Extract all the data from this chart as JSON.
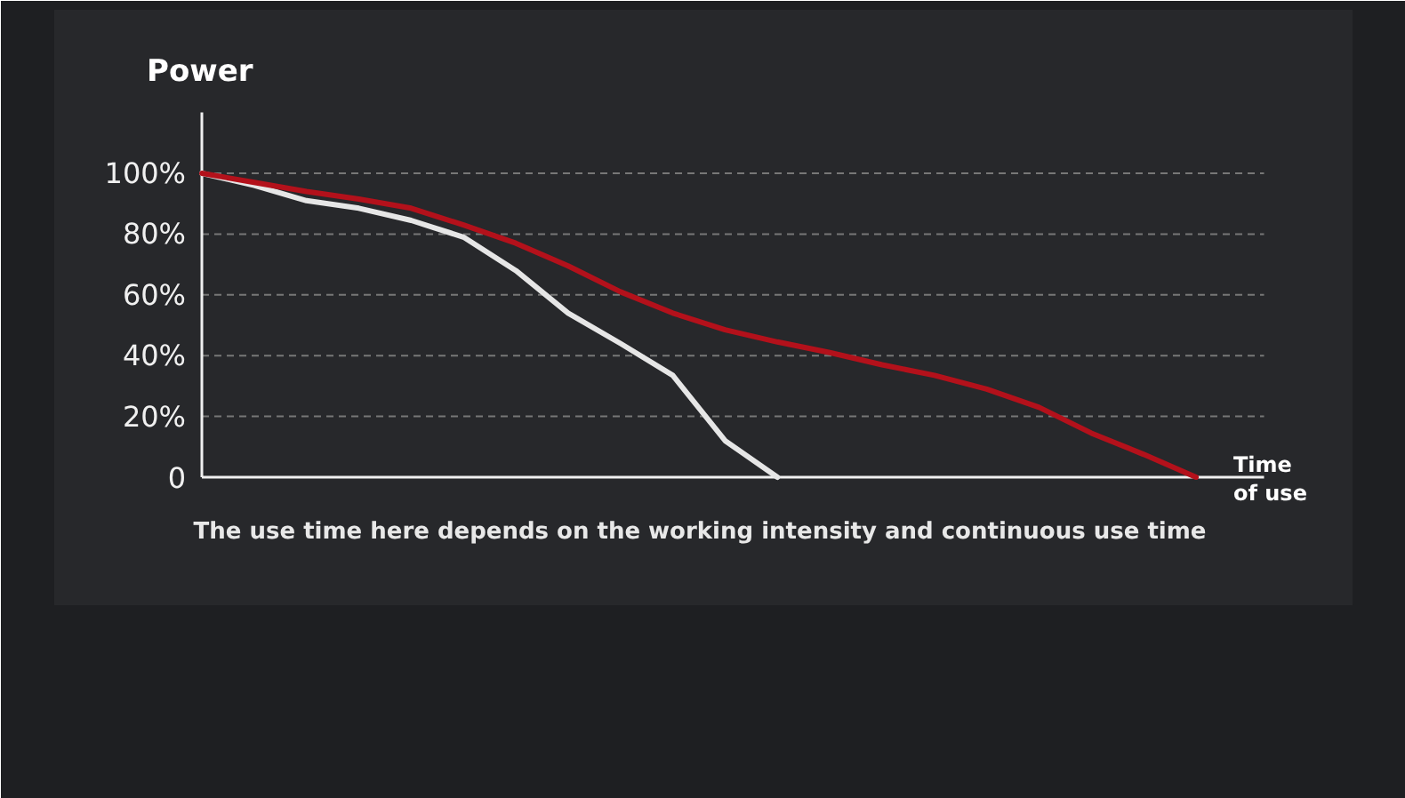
{
  "chart_data": {
    "type": "line",
    "ylabel": "Power",
    "xlabel": "Time of use",
    "annotations": [
      "The use time here depends on the working intensity and continuous use time"
    ],
    "categories": [
      null,
      null,
      null,
      null,
      null,
      null,
      null,
      null,
      null,
      null,
      null,
      null,
      null,
      null,
      null,
      null,
      null,
      null,
      null,
      null
    ],
    "series": [
      {
        "color": "#e6e6e6",
        "values": [
          100,
          96,
          91,
          88.5,
          84.5,
          79,
          68,
          54,
          44,
          33.5,
          12,
          0,
          null,
          null,
          null,
          null,
          null,
          null,
          null,
          null
        ]
      },
      {
        "color": "#b3111b",
        "values": [
          100,
          97,
          94,
          91.5,
          88.5,
          83,
          77,
          69.5,
          61,
          54,
          48.5,
          44.5,
          41,
          37,
          33.5,
          29,
          23,
          14.5,
          7.5,
          0
        ]
      }
    ],
    "ylim": [
      0,
      120
    ],
    "yticks": [
      {
        "value": 0,
        "label": "0"
      },
      {
        "value": 20,
        "label": "20%"
      },
      {
        "value": 40,
        "label": "40%"
      },
      {
        "value": 60,
        "label": "60%"
      },
      {
        "value": 80,
        "label": "80%"
      },
      {
        "value": 100,
        "label": "100%"
      }
    ],
    "grid": "y",
    "line_style": "solid",
    "marker": "none"
  }
}
